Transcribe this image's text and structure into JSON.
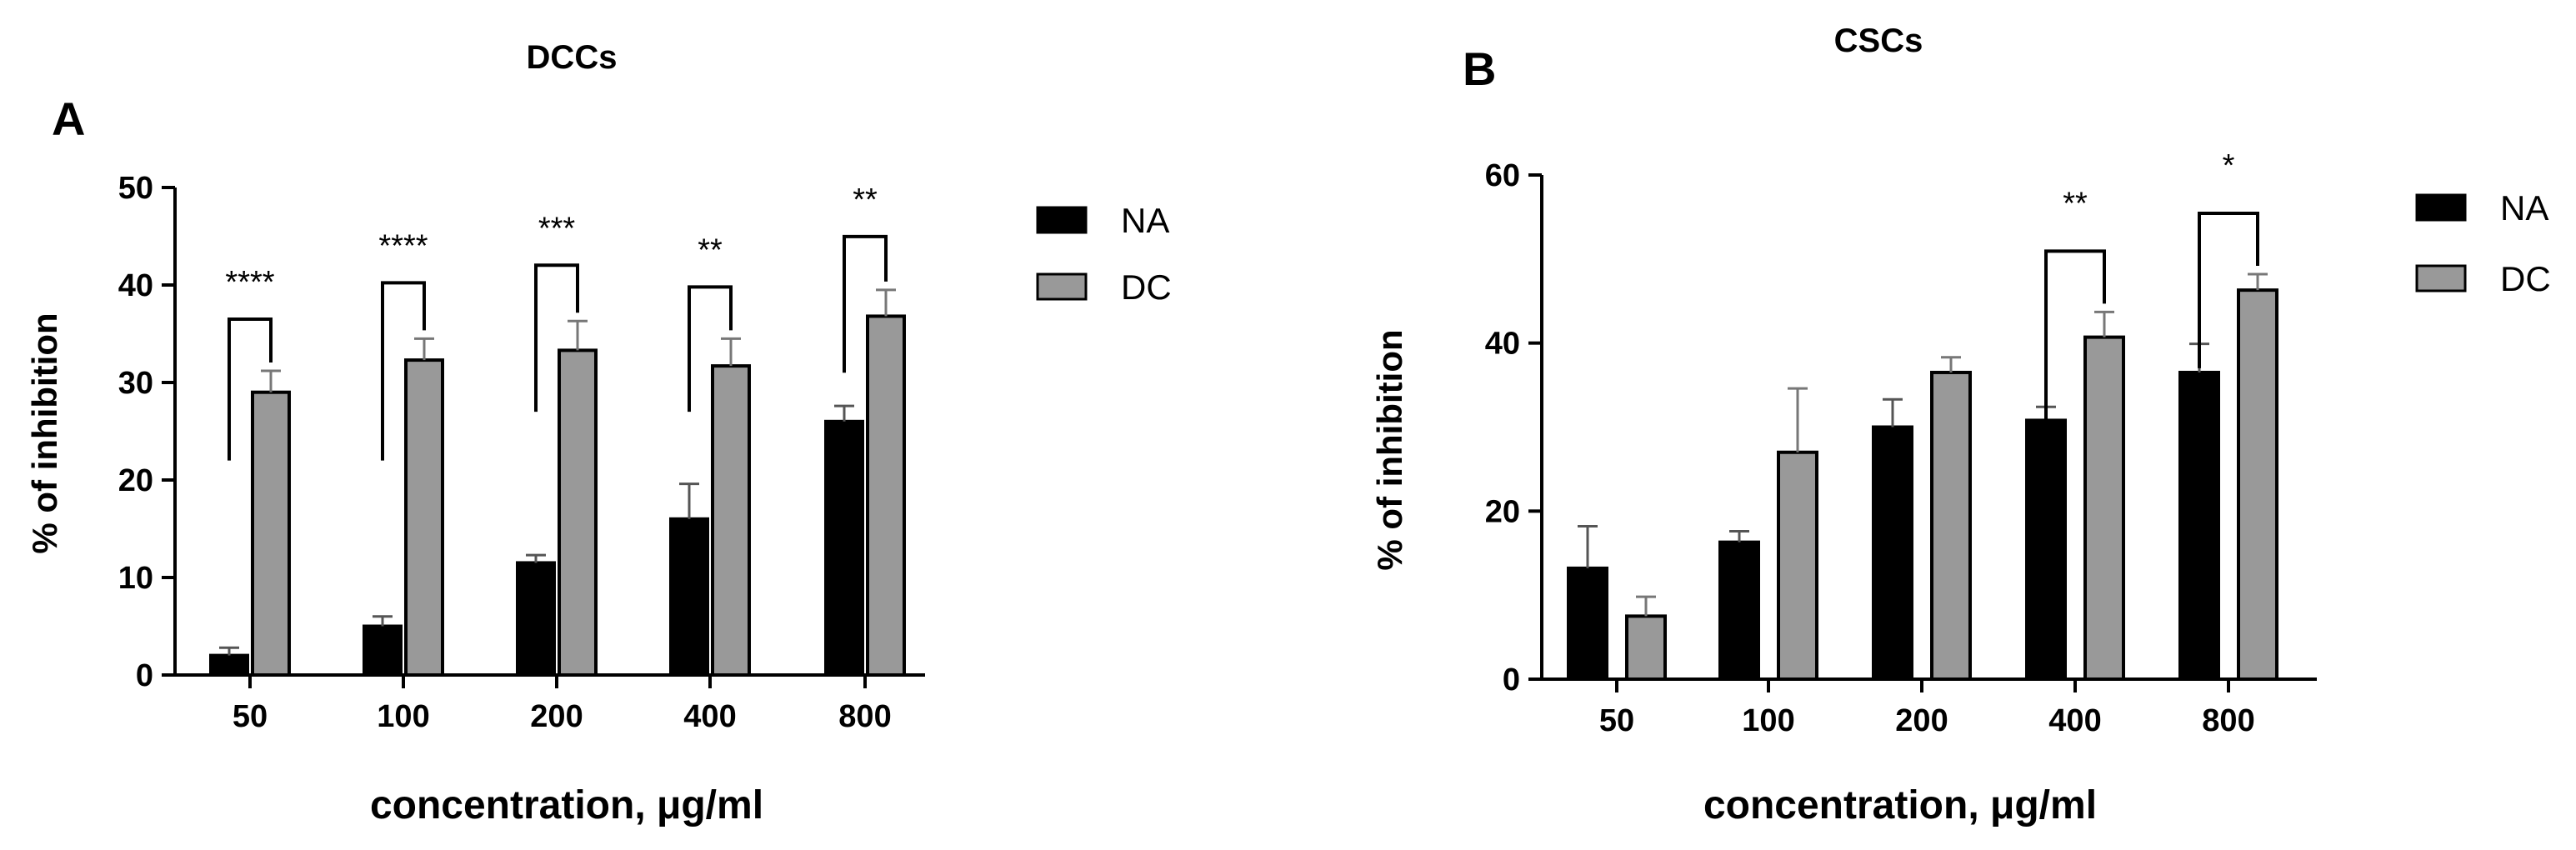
{
  "chart_data": [
    {
      "panel": "A",
      "title": "DCCs",
      "type": "bar",
      "xlabel": "concentration, μg/ml",
      "ylabel": "% of inhibition",
      "ylim": [
        0,
        50
      ],
      "yticks": [
        "0",
        "10",
        "20",
        "30",
        "40",
        "50"
      ],
      "categories": [
        "50",
        "100",
        "200",
        "400",
        "800"
      ],
      "series": [
        {
          "name": "NA",
          "color": "#000000",
          "values": [
            2,
            5,
            11.5,
            16,
            26
          ],
          "errors": [
            0.8,
            1.0,
            0.8,
            3.6,
            1.6
          ]
        },
        {
          "name": "DC",
          "color": "#999999",
          "values": [
            29,
            32.3,
            33.3,
            31.7,
            36.8
          ],
          "errors": [
            2.2,
            2.2,
            3.0,
            2.8,
            2.7
          ]
        }
      ],
      "significance": [
        "****",
        "****",
        "***",
        "**",
        "**"
      ],
      "legend_position": "right"
    },
    {
      "panel": "B",
      "title": "CSCs",
      "type": "bar",
      "xlabel": "concentration, μg/ml",
      "ylabel": "% of inhibition",
      "ylim": [
        0,
        60
      ],
      "yticks": [
        "0",
        "20",
        "40",
        "60"
      ],
      "categories": [
        "50",
        "100",
        "200",
        "400",
        "800"
      ],
      "series": [
        {
          "name": "NA",
          "color": "#000000",
          "values": [
            13.2,
            16.3,
            30,
            30.8,
            36.5
          ],
          "errors": [
            5.0,
            1.3,
            3.3,
            1.6,
            3.4
          ]
        },
        {
          "name": "DC",
          "color": "#999999",
          "values": [
            7.5,
            27,
            36.5,
            40.7,
            46.3
          ],
          "errors": [
            2.3,
            7.6,
            1.8,
            3.0,
            1.9
          ]
        }
      ],
      "significance": [
        "",
        "",
        "",
        "**",
        "*"
      ],
      "legend_position": "right"
    }
  ]
}
